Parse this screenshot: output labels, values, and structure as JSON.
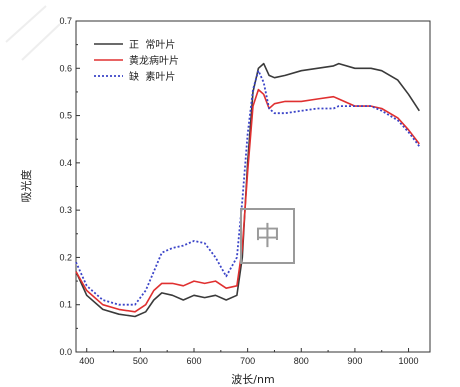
{
  "chart_data": {
    "type": "line",
    "xlabel": "波长/nm",
    "ylabel": "吸光度",
    "xlim": [
      380,
      1040
    ],
    "ylim": [
      0.0,
      0.7
    ],
    "x_ticks": [
      400,
      500,
      600,
      700,
      800,
      900,
      1000
    ],
    "y_ticks": [
      0.0,
      0.1,
      0.2,
      0.3,
      0.4,
      0.5,
      0.6,
      0.7
    ],
    "x_tick_labels": [
      "400",
      "500",
      "600",
      "700",
      "800",
      "900",
      "1000"
    ],
    "y_tick_labels": [
      "0.0",
      "0.1",
      "0.2",
      "0.3",
      "0.4",
      "0.5",
      "0.6",
      "0.7"
    ],
    "grid": false,
    "legend_position": "top-left",
    "series": [
      {
        "name": "正  常叶片",
        "color": "#3a3a3a",
        "dash": "solid",
        "x": [
          380,
          400,
          430,
          460,
          490,
          510,
          525,
          540,
          560,
          580,
          600,
          620,
          640,
          660,
          680,
          690,
          700,
          710,
          720,
          730,
          740,
          750,
          770,
          800,
          830,
          860,
          870,
          900,
          930,
          950,
          980,
          1000,
          1020
        ],
        "y": [
          0.17,
          0.12,
          0.09,
          0.08,
          0.075,
          0.085,
          0.11,
          0.125,
          0.12,
          0.11,
          0.12,
          0.115,
          0.12,
          0.11,
          0.12,
          0.2,
          0.4,
          0.55,
          0.6,
          0.61,
          0.585,
          0.58,
          0.585,
          0.595,
          0.6,
          0.605,
          0.61,
          0.6,
          0.6,
          0.595,
          0.575,
          0.545,
          0.51
        ]
      },
      {
        "name": "黄龙病叶片",
        "color": "#e03030",
        "dash": "solid",
        "x": [
          380,
          400,
          430,
          460,
          490,
          510,
          525,
          540,
          560,
          580,
          600,
          620,
          640,
          660,
          680,
          690,
          700,
          710,
          720,
          730,
          740,
          750,
          770,
          800,
          830,
          860,
          870,
          900,
          930,
          950,
          980,
          1000,
          1020
        ],
        "y": [
          0.17,
          0.13,
          0.1,
          0.09,
          0.085,
          0.1,
          0.13,
          0.145,
          0.145,
          0.14,
          0.15,
          0.145,
          0.15,
          0.135,
          0.14,
          0.22,
          0.38,
          0.52,
          0.555,
          0.545,
          0.515,
          0.525,
          0.53,
          0.53,
          0.535,
          0.54,
          0.535,
          0.52,
          0.52,
          0.515,
          0.495,
          0.47,
          0.44
        ]
      },
      {
        "name": "缺  素叶片",
        "color": "#3b44c8",
        "dash": "dotted",
        "x": [
          380,
          400,
          430,
          460,
          490,
          510,
          525,
          540,
          560,
          580,
          600,
          620,
          640,
          660,
          680,
          690,
          700,
          710,
          720,
          730,
          740,
          750,
          770,
          800,
          830,
          860,
          870,
          900,
          930,
          950,
          980,
          1000,
          1020
        ],
        "y": [
          0.19,
          0.14,
          0.11,
          0.1,
          0.1,
          0.13,
          0.17,
          0.21,
          0.22,
          0.225,
          0.235,
          0.23,
          0.2,
          0.16,
          0.2,
          0.32,
          0.46,
          0.555,
          0.595,
          0.57,
          0.515,
          0.505,
          0.505,
          0.51,
          0.515,
          0.515,
          0.52,
          0.52,
          0.52,
          0.51,
          0.49,
          0.465,
          0.435
        ]
      }
    ]
  }
}
